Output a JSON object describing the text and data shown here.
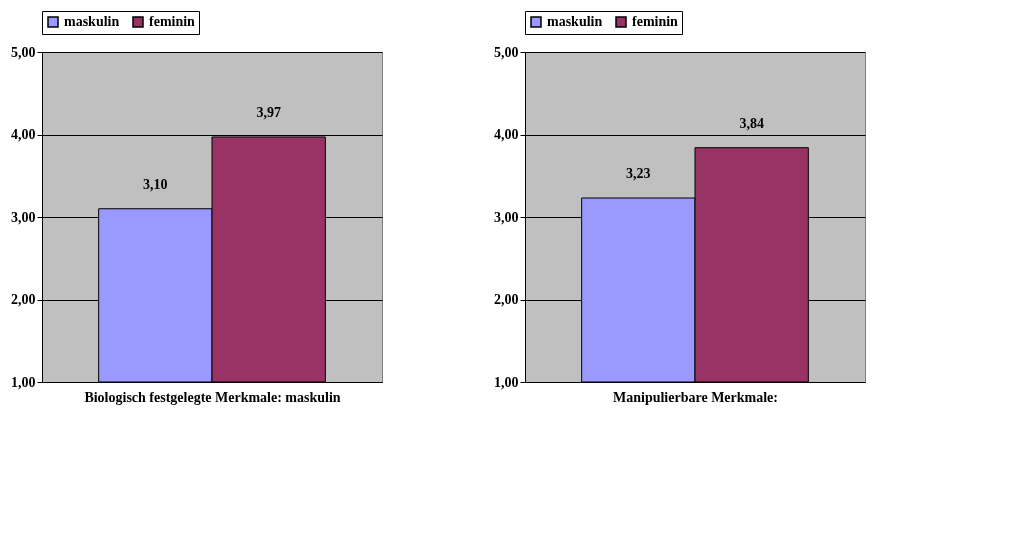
{
  "chart_data": [
    {
      "type": "bar",
      "categories": [
        null
      ],
      "xlabel": "Biologisch festgelegte Merkmale: maskulin",
      "ylim": [
        1,
        5
      ],
      "yticks": [
        {
          "value": 1,
          "label": "1,00"
        },
        {
          "value": 2,
          "label": "2,00"
        },
        {
          "value": 3,
          "label": "3,00"
        },
        {
          "value": 4,
          "label": "4,00"
        },
        {
          "value": 5,
          "label": "5,00"
        }
      ],
      "grid": "y",
      "legend": "top",
      "series": [
        {
          "name": "maskulin",
          "color": "#9999ff",
          "values": [
            3.1
          ],
          "value_labels": [
            "3,10"
          ]
        },
        {
          "name": "feminin",
          "color": "#993366",
          "values": [
            3.97
          ],
          "value_labels": [
            "3,97"
          ]
        }
      ]
    },
    {
      "type": "bar",
      "categories": [
        null
      ],
      "xlabel": "Manipulierbare Merkmale:",
      "ylim": [
        1,
        5
      ],
      "yticks": [
        {
          "value": 1,
          "label": "1,00"
        },
        {
          "value": 2,
          "label": "2,00"
        },
        {
          "value": 3,
          "label": "3,00"
        },
        {
          "value": 4,
          "label": "4,00"
        },
        {
          "value": 5,
          "label": "5,00"
        }
      ],
      "grid": "y",
      "legend": "top",
      "series": [
        {
          "name": "maskulin",
          "color": "#9999ff",
          "values": [
            3.23
          ],
          "value_labels": [
            "3,23"
          ]
        },
        {
          "name": "feminin",
          "color": "#993366",
          "values": [
            3.84
          ],
          "value_labels": [
            "3,84"
          ]
        }
      ]
    }
  ]
}
